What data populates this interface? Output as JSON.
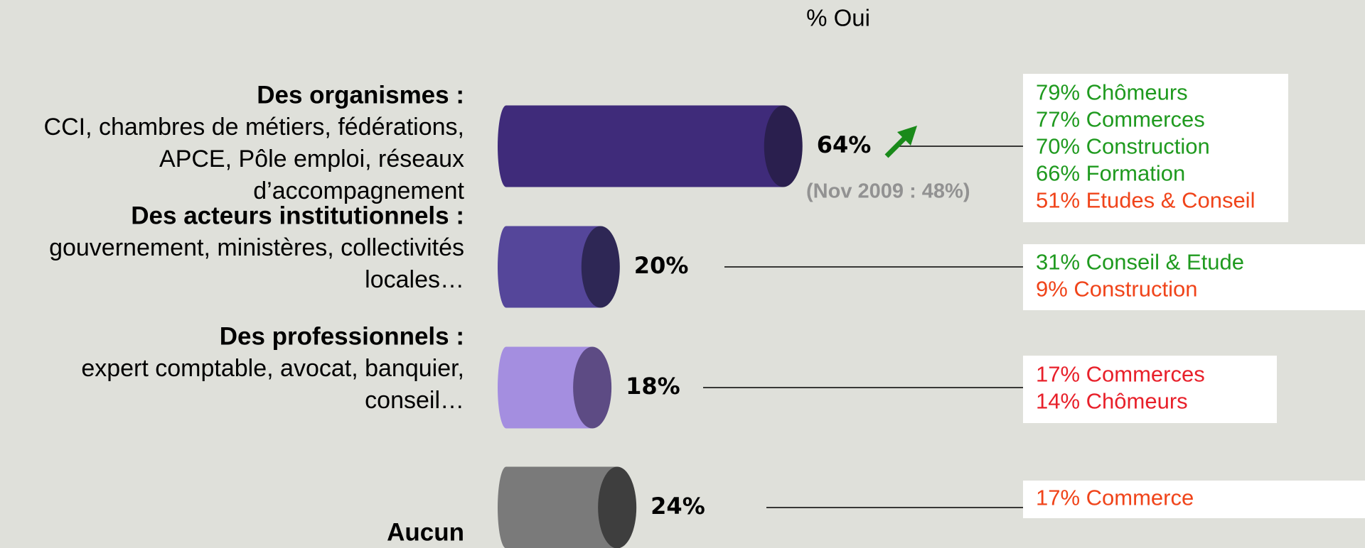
{
  "chart_data": {
    "type": "bar",
    "title": "% Oui",
    "categories": [
      "Des organismes :",
      "Des acteurs institutionnels :",
      "Des professionnels :",
      "Aucun"
    ],
    "category_details": [
      [
        "CCI, chambres de métiers, fédérations,",
        "APCE, Pôle emploi, réseaux",
        "d’accompagnement"
      ],
      [
        "gouvernement, ministères, collectivités",
        "locales…"
      ],
      [
        "expert comptable, avocat, banquier,",
        "conseil…"
      ],
      []
    ],
    "values": [
      64,
      20,
      18,
      24
    ],
    "value_labels": [
      "64%",
      "20%",
      "18%",
      "24%"
    ],
    "colors": [
      "#3f2b7a",
      "#55469a",
      "#a48ee0",
      "#7a7a7a"
    ],
    "end_colors": [
      "#2a1f4e",
      "#2e2755",
      "#5d4b84",
      "#3e3e3e"
    ],
    "annotation": "(Nov 2009 :  48%)",
    "breakdowns": [
      [
        {
          "text": "79% Chômeurs",
          "color": "#1f9a1f"
        },
        {
          "text": "77% Commerces",
          "color": "#1f9a1f"
        },
        {
          "text": "70% Construction",
          "color": "#1f9a1f"
        },
        {
          "text": "66% Formation",
          "color": "#1f9a1f"
        },
        {
          "text": "51% Etudes & Conseil",
          "color": "#f0441a"
        }
      ],
      [
        {
          "text": "31% Conseil & Etude",
          "color": "#1f9a1f"
        },
        {
          "text": "9% Construction",
          "color": "#f0441a"
        }
      ],
      [
        {
          "text": "17% Commerces",
          "color": "#e8202a"
        },
        {
          "text": "14% Chômeurs",
          "color": "#e8202a"
        }
      ],
      [
        {
          "text": "17% Commerce",
          "color": "#f0441a"
        }
      ]
    ]
  }
}
